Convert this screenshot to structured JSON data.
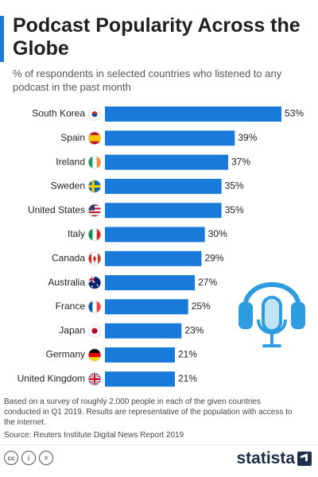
{
  "header": {
    "title": "Podcast Popularity Across the Globe",
    "subtitle": "% of respondents in selected countries who listened to any podcast in the past month"
  },
  "colors": {
    "accent": "#1a7ad9",
    "bar": "#1a7ad9",
    "text": "#222222",
    "brand": "#1f2d4a"
  },
  "chart_data": {
    "type": "bar",
    "orientation": "horizontal",
    "title": "Podcast Popularity Across the Globe",
    "subtitle": "% of respondents in selected countries who listened to any podcast in the past month",
    "categories": [
      "South Korea",
      "Spain",
      "Ireland",
      "Sweden",
      "United States",
      "Italy",
      "Canada",
      "Australia",
      "France",
      "Japan",
      "Germany",
      "United Kingdom"
    ],
    "flags": [
      "south-korea-flag-icon",
      "spain-flag-icon",
      "ireland-flag-icon",
      "sweden-flag-icon",
      "united-states-flag-icon",
      "italy-flag-icon",
      "canada-flag-icon",
      "australia-flag-icon",
      "france-flag-icon",
      "japan-flag-icon",
      "germany-flag-icon",
      "united-kingdom-flag-icon"
    ],
    "values": [
      53,
      39,
      37,
      35,
      35,
      30,
      29,
      27,
      25,
      23,
      21,
      21
    ],
    "value_labels": [
      "53%",
      "39%",
      "37%",
      "35%",
      "35%",
      "30%",
      "29%",
      "27%",
      "25%",
      "23%",
      "21%",
      "21%"
    ],
    "xlim": [
      0,
      53
    ],
    "grid": false,
    "legend": "none"
  },
  "footer": {
    "note": "Based on a survey of roughly 2,000 people in each of the given countries conducted in Q1 2019. Results are representative of the population with access to the internet.",
    "source": "Source: Reuters Institute Digital News Report 2019",
    "cc_icons": [
      "creative-commons-icon",
      "attribution-icon",
      "no-derivatives-icon"
    ],
    "brand": "statista"
  },
  "decor": {
    "illustration": "headphones-microphone-icon"
  }
}
